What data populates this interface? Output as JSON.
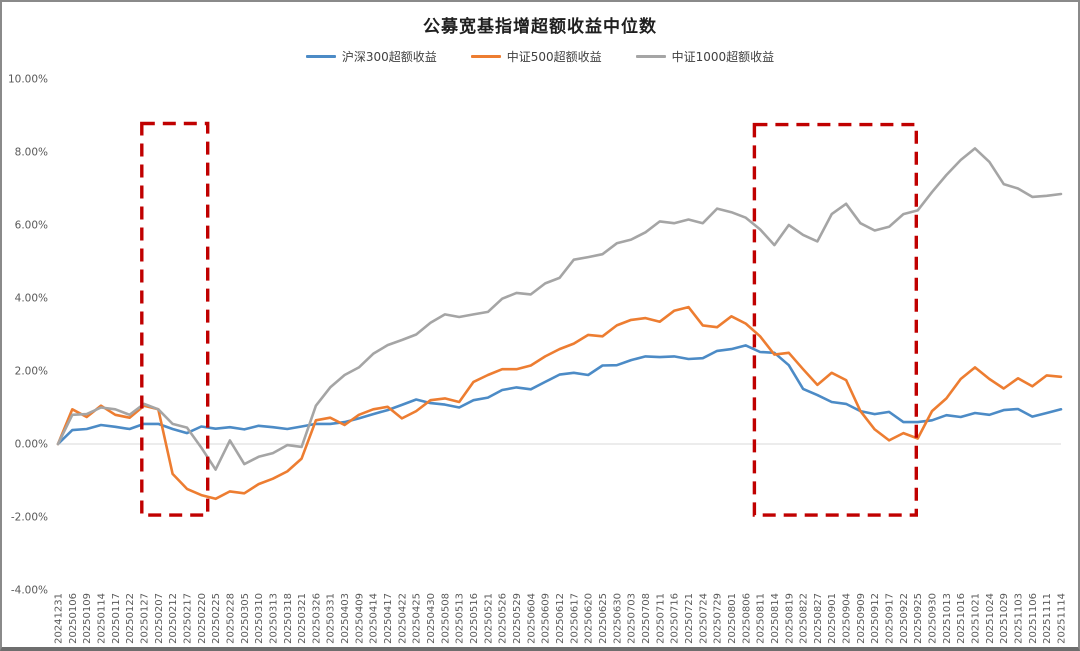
{
  "frame": {
    "title": "公募宽基指增超额收益中位数"
  },
  "legend": [
    {
      "label": "沪深300超额收益",
      "color": "#4C8BC6"
    },
    {
      "label": "中证500超额收益",
      "color": "#ED7D31"
    },
    {
      "label": "中证1000超额收益",
      "color": "#A5A5A5"
    }
  ],
  "chart_data": {
    "type": "line",
    "title": "公募宽基指增超额收益中位数",
    "legend_position": "top",
    "grid": "zero-line-only",
    "y_axis": {
      "min": -4,
      "max": 10,
      "tick_step": 2,
      "unit": "%",
      "tick_labels": [
        "10.00%",
        "8.00%",
        "6.00%",
        "4.00%",
        "2.00%",
        "0.00%",
        "-2.00%",
        "-4.00%"
      ]
    },
    "categories": [
      "20241231",
      "20250106",
      "20250109",
      "20250114",
      "20250117",
      "20250122",
      "20250127",
      "20250207",
      "20250212",
      "20250217",
      "20250220",
      "20250225",
      "20250228",
      "20250305",
      "20250310",
      "20250313",
      "20250318",
      "20250321",
      "20250326",
      "20250331",
      "20250403",
      "20250409",
      "20250414",
      "20250417",
      "20250422",
      "20250425",
      "20250430",
      "20250508",
      "20250513",
      "20250516",
      "20250521",
      "20250526",
      "20250529",
      "20250604",
      "20250609",
      "20250612",
      "20250617",
      "20250620",
      "20250625",
      "20250630",
      "20250703",
      "20250708",
      "20250711",
      "20250716",
      "20250721",
      "20250724",
      "20250729",
      "20250801",
      "20250806",
      "20250811",
      "20250814",
      "20250819",
      "20250822",
      "20250827",
      "20250901",
      "20250904",
      "20250909",
      "20250912",
      "20250917",
      "20250922",
      "20250925",
      "20250930",
      "20251013",
      "20251016",
      "20251021",
      "20251024",
      "20251029",
      "20251103",
      "20251106",
      "20251111",
      "20251114"
    ],
    "series": [
      {
        "name": "沪深300超额收益",
        "color": "#4C8BC6",
        "values": [
          0.0,
          0.38,
          0.41,
          0.52,
          0.47,
          0.41,
          0.55,
          0.55,
          0.41,
          0.3,
          0.48,
          0.42,
          0.46,
          0.4,
          0.5,
          0.46,
          0.41,
          0.48,
          0.55,
          0.55,
          0.6,
          0.7,
          0.82,
          0.93,
          1.07,
          1.22,
          1.12,
          1.08,
          1.0,
          1.2,
          1.27,
          1.48,
          1.55,
          1.5,
          1.7,
          1.9,
          1.95,
          1.89,
          2.15,
          2.16,
          2.3,
          2.4,
          2.38,
          2.4,
          2.33,
          2.35,
          2.55,
          2.6,
          2.7,
          2.52,
          2.5,
          2.16,
          1.51,
          1.34,
          1.15,
          1.1,
          0.9,
          0.82,
          0.88,
          0.6,
          0.6,
          0.65,
          0.79,
          0.74,
          0.85,
          0.8,
          0.93,
          0.96,
          0.75,
          0.85,
          0.95
        ]
      },
      {
        "name": "中证500超额收益",
        "color": "#ED7D31",
        "values": [
          0.0,
          0.95,
          0.74,
          1.05,
          0.8,
          0.72,
          1.05,
          0.95,
          -0.82,
          -1.23,
          -1.4,
          -1.5,
          -1.3,
          -1.35,
          -1.1,
          -0.95,
          -0.75,
          -0.4,
          0.65,
          0.72,
          0.52,
          0.8,
          0.95,
          1.02,
          0.7,
          0.9,
          1.2,
          1.25,
          1.15,
          1.7,
          1.89,
          2.05,
          2.05,
          2.15,
          2.4,
          2.6,
          2.75,
          2.99,
          2.95,
          3.25,
          3.4,
          3.45,
          3.35,
          3.65,
          3.75,
          3.25,
          3.2,
          3.5,
          3.3,
          2.95,
          2.45,
          2.5,
          2.05,
          1.62,
          1.95,
          1.75,
          0.9,
          0.4,
          0.1,
          0.3,
          0.15,
          0.9,
          1.25,
          1.78,
          2.1,
          1.78,
          1.52,
          1.8,
          1.58,
          1.88,
          1.84
        ]
      },
      {
        "name": "中证1000超额收益",
        "color": "#A5A5A5",
        "values": [
          0.0,
          0.8,
          0.82,
          1.0,
          0.95,
          0.8,
          1.1,
          0.95,
          0.55,
          0.45,
          -0.1,
          -0.7,
          0.1,
          -0.55,
          -0.35,
          -0.25,
          -0.03,
          -0.08,
          1.05,
          1.55,
          1.89,
          2.1,
          2.47,
          2.71,
          2.85,
          3.0,
          3.32,
          3.55,
          3.48,
          3.55,
          3.62,
          3.98,
          4.14,
          4.1,
          4.4,
          4.55,
          5.05,
          5.12,
          5.2,
          5.5,
          5.6,
          5.8,
          6.1,
          6.05,
          6.15,
          6.05,
          6.45,
          6.35,
          6.2,
          5.88,
          5.45,
          6.0,
          5.73,
          5.55,
          6.3,
          6.58,
          6.05,
          5.85,
          5.95,
          6.3,
          6.4,
          6.9,
          7.37,
          7.78,
          8.1,
          7.73,
          7.12,
          7.0,
          6.77,
          6.8,
          6.85
        ]
      }
    ],
    "annotations": [
      {
        "type": "dashed-box",
        "color": "#C00000",
        "from_index": 5.85,
        "to_index": 10.45,
        "top_value": 8.78,
        "bottom_value": -1.95
      },
      {
        "type": "dashed-box",
        "color": "#C00000",
        "from_index": 48.6,
        "to_index": 59.9,
        "top_value": 8.75,
        "bottom_value": -1.95
      }
    ],
    "zero_line_color": "#D9D9D9"
  }
}
